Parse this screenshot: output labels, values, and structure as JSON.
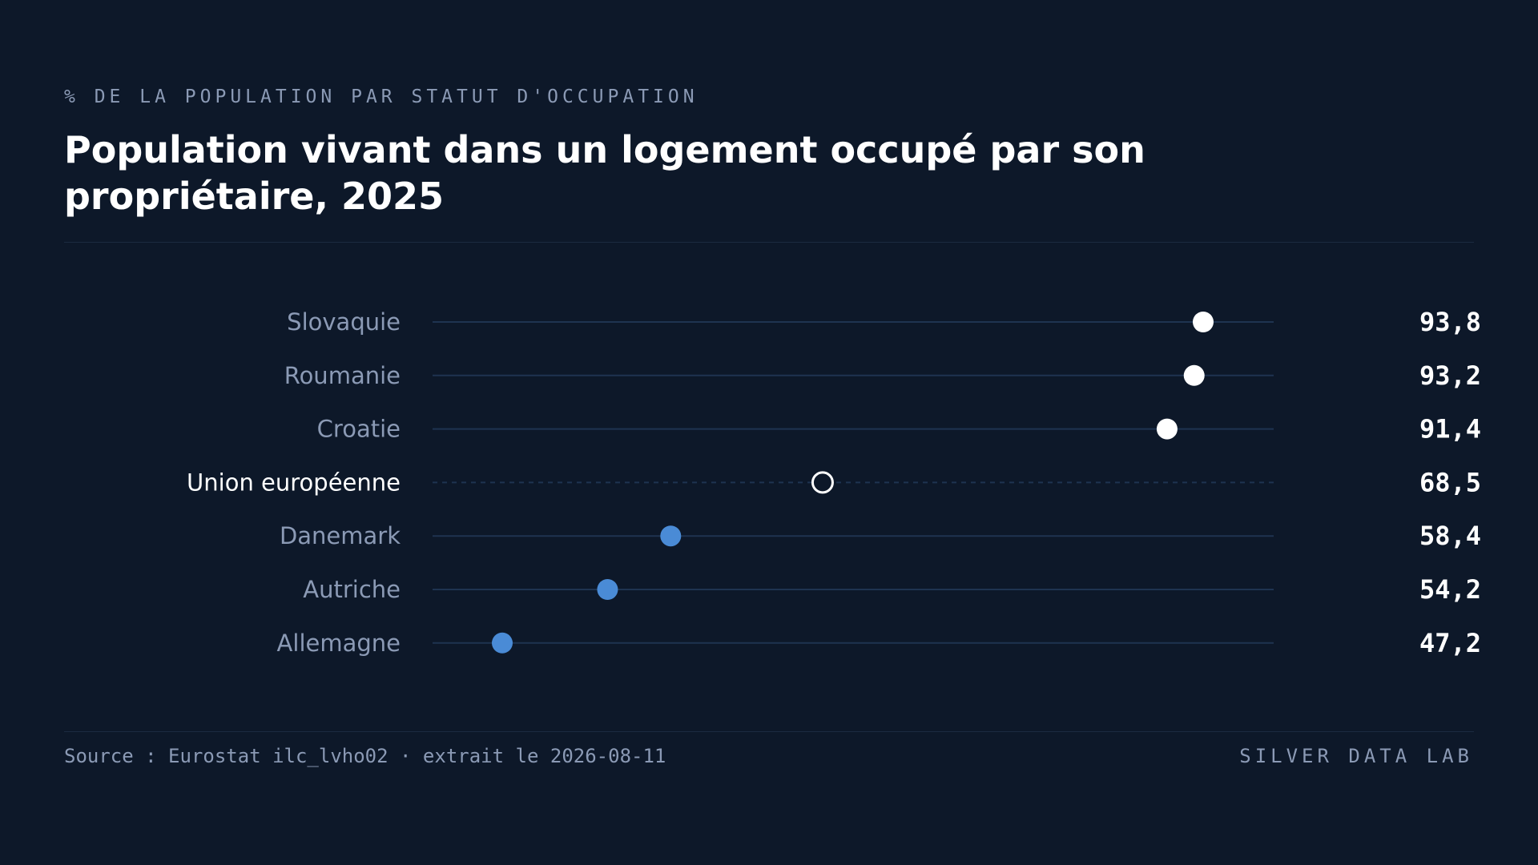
{
  "header": {
    "subtitle": "% DE LA POPULATION PAR STATUT D'OCCUPATION",
    "title": "Population vivant dans un logement occupé par son propriétaire, 2025"
  },
  "footer": {
    "source": "Source : Eurostat ilc_lvho02 · extrait le 2026-08-11",
    "brand": "SILVER DATA LAB"
  },
  "colors": {
    "background": "#0d1829",
    "high_marker": "#ffffff",
    "low_marker": "#4a8bd6",
    "reference_marker_stroke": "#ffffff",
    "track": "#1e3350",
    "country_label": "#8b9ab5",
    "reference_label": "#ffffff",
    "value_label": "#ffffff"
  },
  "chart_data": {
    "type": "dot",
    "title": "Population vivant dans un logement occupé par son propriétaire, 2025",
    "subtitle": "% DE LA POPULATION PAR STATUT D'OCCUPATION",
    "xlabel": "",
    "ylabel": "",
    "grid": false,
    "legend": "none",
    "categories": [
      "Slovaquie",
      "Roumanie",
      "Croatie",
      "Union européenne",
      "Danemark",
      "Autriche",
      "Allemagne"
    ],
    "values": [
      93.8,
      93.2,
      91.4,
      68.5,
      58.4,
      54.2,
      47.2
    ],
    "value_labels": [
      "93,8",
      "93,2",
      "91,4",
      "68,5",
      "58,4",
      "54,2",
      "47,2"
    ],
    "reference_category": "Union européenne",
    "marker_groups": [
      "high",
      "high",
      "high",
      "reference",
      "low",
      "low",
      "low"
    ]
  }
}
